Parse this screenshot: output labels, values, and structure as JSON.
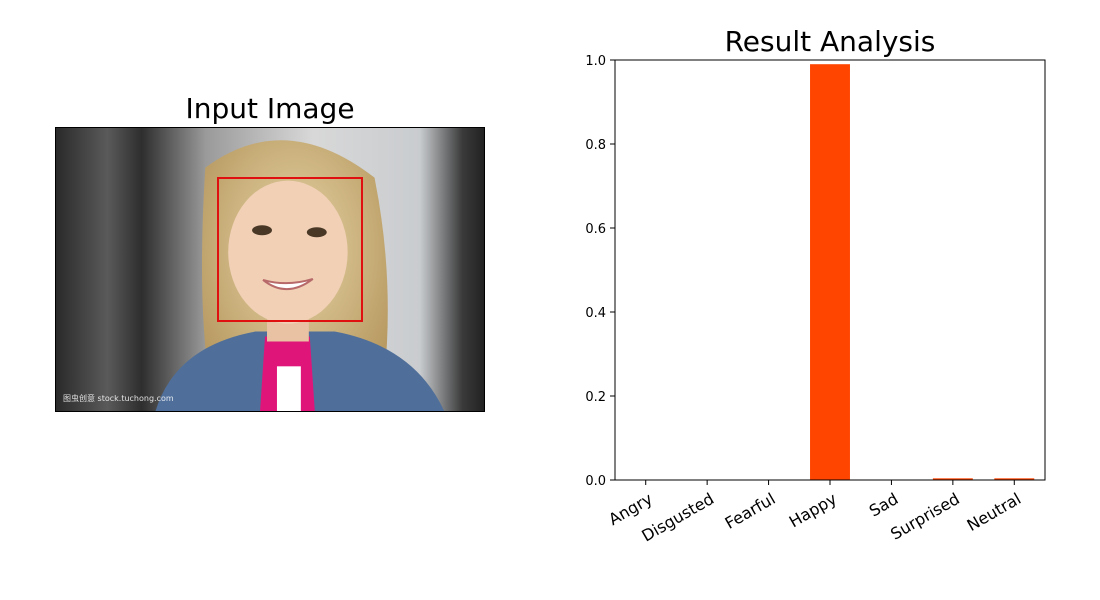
{
  "left_panel": {
    "title": "Input Image",
    "watermark": "图虫创意 stock.tuchong.com",
    "face_box_color": "#e01010"
  },
  "chart_data": {
    "type": "bar",
    "title": "Result Analysis",
    "categories": [
      "Angry",
      "Disgusted",
      "Fearful",
      "Happy",
      "Sad",
      "Surprised",
      "Neutral"
    ],
    "values": [
      0.0,
      0.0,
      0.0,
      0.99,
      0.0,
      0.004,
      0.004
    ],
    "ylim": [
      0.0,
      1.0
    ],
    "yticks": [
      "0.0",
      "0.2",
      "0.4",
      "0.6",
      "0.8",
      "1.0"
    ],
    "xlabel": "",
    "ylabel": "",
    "grid": false,
    "bar_color": "#ff4500"
  }
}
